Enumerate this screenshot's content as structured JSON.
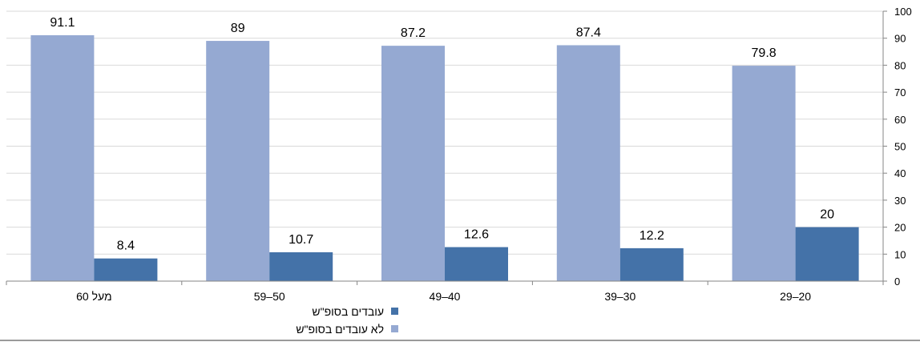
{
  "chart_data": {
    "type": "bar",
    "direction": "rtl",
    "categories": [
      "29–20",
      "39–30",
      "49–40",
      "59–50",
      "מעל 60"
    ],
    "series": [
      {
        "name": "לא עובדים בסופ\"ש",
        "color": "#95a9d2",
        "values": [
          79.8,
          87.4,
          87.2,
          89,
          91.1
        ]
      },
      {
        "name": "עובדים בסופ\"ש",
        "color": "#4472a8",
        "values": [
          20,
          12.2,
          12.6,
          10.7,
          8.4
        ]
      }
    ],
    "ylim": [
      0,
      100
    ],
    "yticks": [
      0,
      10,
      20,
      30,
      40,
      50,
      60,
      70,
      80,
      90,
      100
    ],
    "y_axis_side": "right",
    "grid": true,
    "legend_position": "bottom"
  }
}
